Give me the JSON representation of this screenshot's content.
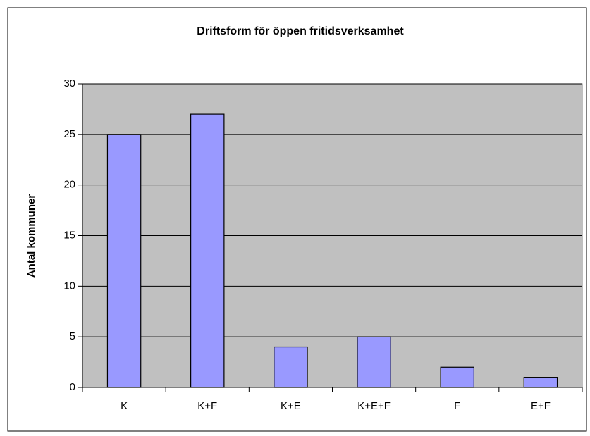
{
  "chart_data": {
    "type": "bar",
    "title": "Driftsform för öppen fritidsverksamhet",
    "y_label": "Antal kommuner",
    "categories": [
      "K",
      "K+F",
      "K+E",
      "K+E+F",
      "F",
      "E+F"
    ],
    "values": [
      25,
      27,
      4,
      5,
      2,
      1
    ],
    "color": "#9999ff",
    "ylim": [
      0,
      30
    ],
    "yticks": [
      0,
      5,
      10,
      15,
      20,
      25,
      30
    ],
    "grid": true
  }
}
